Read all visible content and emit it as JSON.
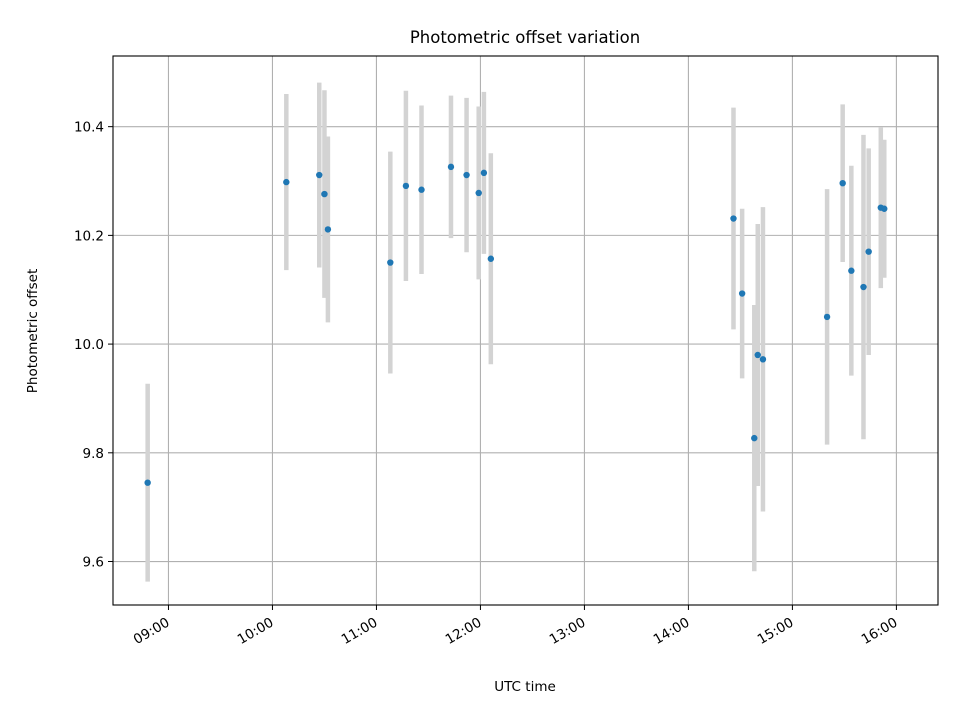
{
  "chart_data": {
    "type": "scatter",
    "title": "Photometric offset variation",
    "xlabel": "UTC time",
    "ylabel": "Photometric offset",
    "x_format": "HH:MM",
    "xlim": [
      "08:28",
      "16:24"
    ],
    "ylim": [
      9.52,
      10.53
    ],
    "x_ticks": [
      "09:00",
      "10:00",
      "11:00",
      "12:00",
      "13:00",
      "14:00",
      "15:00",
      "16:00"
    ],
    "y_ticks": [
      9.6,
      9.8,
      10.0,
      10.2,
      10.4
    ],
    "y_tick_labels": [
      "9.6",
      "9.8",
      "10.0",
      "10.2",
      "10.4"
    ],
    "grid": true,
    "errorbar_color": "#d3d3d3",
    "marker_color": "#1f77b4",
    "points": [
      {
        "x": "08:48",
        "y": 9.745,
        "yerr": 0.182
      },
      {
        "x": "10:08",
        "y": 10.298,
        "yerr": 0.162
      },
      {
        "x": "10:27",
        "y": 10.311,
        "yerr": 0.17
      },
      {
        "x": "10:30",
        "y": 10.276,
        "yerr": 0.191
      },
      {
        "x": "10:32",
        "y": 10.211,
        "yerr": 0.171
      },
      {
        "x": "11:08",
        "y": 10.15,
        "yerr": 0.204
      },
      {
        "x": "11:17",
        "y": 10.291,
        "yerr": 0.175
      },
      {
        "x": "11:26",
        "y": 10.284,
        "yerr": 0.155
      },
      {
        "x": "11:43",
        "y": 10.326,
        "yerr": 0.131
      },
      {
        "x": "11:52",
        "y": 10.311,
        "yerr": 0.142
      },
      {
        "x": "11:59",
        "y": 10.278,
        "yerr": 0.159
      },
      {
        "x": "12:02",
        "y": 10.315,
        "yerr": 0.149
      },
      {
        "x": "12:06",
        "y": 10.157,
        "yerr": 0.194
      },
      {
        "x": "14:26",
        "y": 10.231,
        "yerr": 0.204
      },
      {
        "x": "14:31",
        "y": 10.093,
        "yerr": 0.156
      },
      {
        "x": "14:38",
        "y": 9.827,
        "yerr": 0.245
      },
      {
        "x": "14:40",
        "y": 9.98,
        "yerr": 0.241
      },
      {
        "x": "14:43",
        "y": 9.972,
        "yerr": 0.28
      },
      {
        "x": "15:20",
        "y": 10.05,
        "yerr": 0.235
      },
      {
        "x": "15:29",
        "y": 10.296,
        "yerr": 0.145
      },
      {
        "x": "15:34",
        "y": 10.135,
        "yerr": 0.193
      },
      {
        "x": "15:41",
        "y": 10.105,
        "yerr": 0.28
      },
      {
        "x": "15:44",
        "y": 10.17,
        "yerr": 0.19
      },
      {
        "x": "15:51",
        "y": 10.251,
        "yerr": 0.148
      },
      {
        "x": "15:53",
        "y": 10.249,
        "yerr": 0.127
      }
    ]
  }
}
